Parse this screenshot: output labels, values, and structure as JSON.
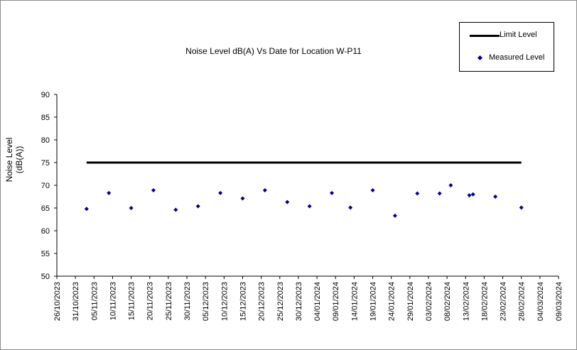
{
  "chart_data": {
    "type": "scatter",
    "title": "Noise Level dB(A) Vs Date for Location W-P11",
    "ylabel_lines": [
      "Noise Level",
      "(dB(A))"
    ],
    "xlabel": "",
    "ylim": [
      50,
      90
    ],
    "y_ticks": [
      "50",
      "55",
      "60",
      "65",
      "70",
      "75",
      "80",
      "85",
      "90"
    ],
    "x_ticks": [
      "26/10/2023",
      "31/10/2023",
      "05/11/2023",
      "10/11/2023",
      "15/11/2023",
      "20/11/2023",
      "25/11/2023",
      "30/11/2023",
      "05/12/2023",
      "10/12/2023",
      "15/12/2023",
      "20/12/2023",
      "25/12/2023",
      "30/12/2023",
      "04/01/2024",
      "09/01/2024",
      "14/01/2024",
      "19/01/2024",
      "24/01/2024",
      "29/01/2024",
      "03/02/2024",
      "08/02/2024",
      "13/02/2024",
      "18/02/2024",
      "23/02/2024",
      "28/02/2024",
      "04/03/2024",
      "09/03/2024"
    ],
    "grid": false,
    "legend": {
      "placement": "top-right",
      "entries": [
        "Limit Level",
        "Measured Level"
      ]
    },
    "series": [
      {
        "name": "Limit Level",
        "kind": "line",
        "color": "#000000",
        "points": [
          {
            "x": "03/11/2023",
            "y": 75
          },
          {
            "x": "28/02/2024",
            "y": 75
          }
        ]
      },
      {
        "name": "Measured Level",
        "kind": "scatter",
        "color": "#00008b",
        "points": [
          {
            "x": "03/11/2023",
            "y": 64.8
          },
          {
            "x": "09/11/2023",
            "y": 68.3
          },
          {
            "x": "15/11/2023",
            "y": 65.0
          },
          {
            "x": "21/11/2023",
            "y": 68.9
          },
          {
            "x": "27/11/2023",
            "y": 64.6
          },
          {
            "x": "03/12/2023",
            "y": 65.4
          },
          {
            "x": "09/12/2023",
            "y": 68.3
          },
          {
            "x": "15/12/2023",
            "y": 67.1
          },
          {
            "x": "21/12/2023",
            "y": 68.9
          },
          {
            "x": "27/12/2023",
            "y": 66.3
          },
          {
            "x": "02/01/2024",
            "y": 65.4
          },
          {
            "x": "08/01/2024",
            "y": 68.3
          },
          {
            "x": "13/01/2024",
            "y": 65.1
          },
          {
            "x": "19/01/2024",
            "y": 68.9
          },
          {
            "x": "25/01/2024",
            "y": 63.3
          },
          {
            "x": "31/01/2024",
            "y": 68.2
          },
          {
            "x": "06/02/2024",
            "y": 68.2
          },
          {
            "x": "09/02/2024",
            "y": 70.0
          },
          {
            "x": "14/02/2024",
            "y": 67.8
          },
          {
            "x": "15/02/2024",
            "y": 68.0
          },
          {
            "x": "21/02/2024",
            "y": 67.5
          },
          {
            "x": "28/02/2024",
            "y": 65.1
          }
        ]
      }
    ]
  }
}
